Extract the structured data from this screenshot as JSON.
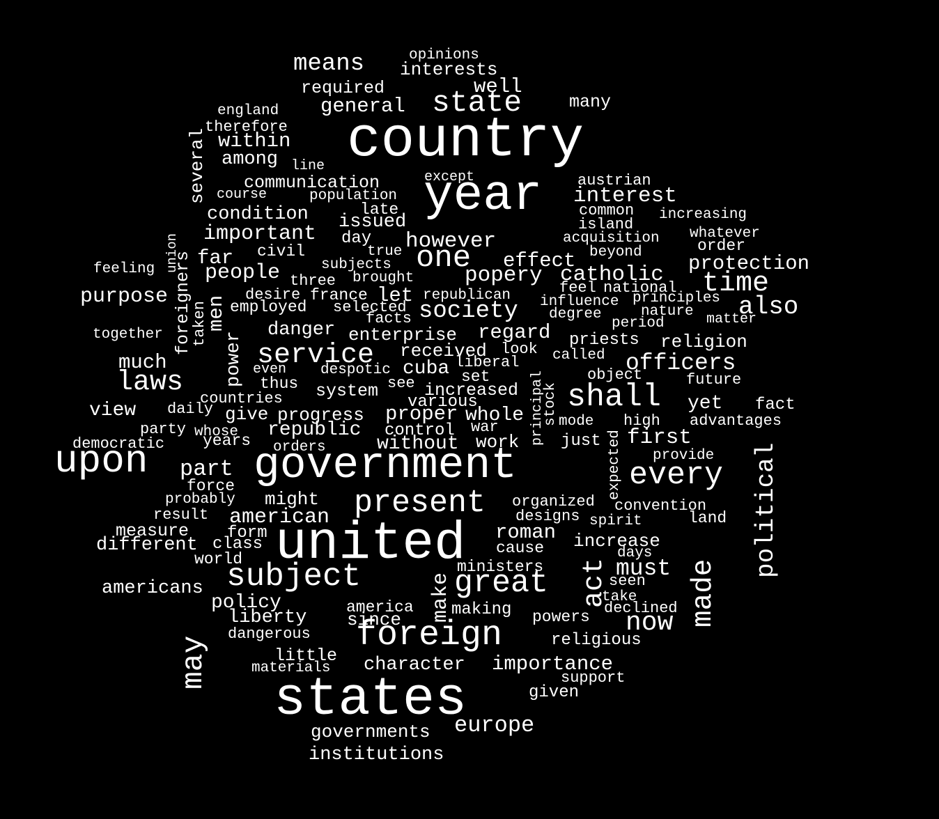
{
  "background_color": "#000000",
  "text_color": "#ffffff",
  "words": [
    "country",
    "year",
    "states",
    "united",
    "government",
    "foreign",
    "upon",
    "subject",
    "present",
    "great",
    "state",
    "shall",
    "means",
    "general",
    "interests",
    "well",
    "opinions",
    "required",
    "many",
    "england",
    "therefore",
    "within",
    "among",
    "several",
    "line",
    "communication",
    "except",
    "austrian",
    "interest",
    "course",
    "population",
    "condition",
    "late",
    "issued",
    "common",
    "increasing",
    "island",
    "important",
    "day",
    "whatever",
    "acquisition",
    "however",
    "order",
    "union",
    "civil",
    "true",
    "beyond",
    "feeling",
    "foreigners",
    "far",
    "one",
    "effect",
    "subjects",
    "protection",
    "people",
    "three",
    "brought",
    "popery",
    "catholic",
    "time",
    "purpose",
    "desire",
    "france",
    "let",
    "republican",
    "feel",
    "national",
    "principles",
    "men",
    "employed",
    "selected",
    "influence",
    "also",
    "society",
    "facts",
    "degree",
    "nature",
    "matter",
    "taken",
    "together",
    "danger",
    "enterprise",
    "regard",
    "period",
    "priests",
    "religion",
    "power",
    "service",
    "received",
    "look",
    "much",
    "despotic",
    "even",
    "cuba",
    "liberal",
    "called",
    "officers",
    "laws",
    "thus",
    "set",
    "see",
    "object",
    "future",
    "principal",
    "system",
    "increased",
    "stock",
    "countries",
    "various",
    "yet",
    "fact",
    "view",
    "daily",
    "give",
    "progress",
    "proper",
    "whole",
    "mode",
    "high",
    "advantages",
    "party",
    "whose",
    "republic",
    "control",
    "war",
    "expected",
    "democratic",
    "years",
    "orders",
    "without",
    "work",
    "just",
    "first",
    "political",
    "provide",
    "part",
    "every",
    "force",
    "probably",
    "might",
    "organized",
    "convention",
    "result",
    "american",
    "designs",
    "spirit",
    "land",
    "measure",
    "form",
    "roman",
    "different",
    "class",
    "cause",
    "increase",
    "days",
    "world",
    "act",
    "ministers",
    "must",
    "made",
    "americans",
    "seen",
    "policy",
    "make",
    "take",
    "america",
    "making",
    "declined",
    "liberty",
    "since",
    "powers",
    "now",
    "may",
    "dangerous",
    "religious",
    "little",
    "character",
    "importance",
    "materials",
    "support",
    "given",
    "governments",
    "europe",
    "institutions"
  ]
}
